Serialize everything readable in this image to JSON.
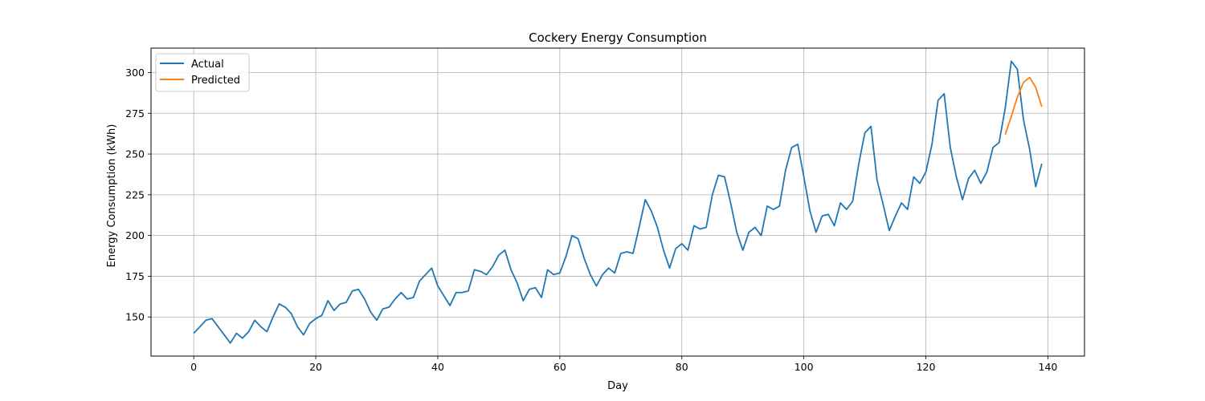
{
  "chart_data": {
    "type": "line",
    "title": "Cockery Energy Consumption",
    "xlabel": "Day",
    "ylabel": "Energy Consumption (kWh)",
    "xlim": [
      -7,
      146
    ],
    "ylim": [
      126,
      315
    ],
    "xticks": [
      0,
      20,
      40,
      60,
      80,
      100,
      120,
      140
    ],
    "yticks": [
      150,
      175,
      200,
      225,
      250,
      275,
      300
    ],
    "grid": true,
    "legend_position": "top-left",
    "series": [
      {
        "name": "Actual",
        "color": "#1f77b4",
        "x_start": 0,
        "values": [
          140,
          144,
          148,
          149,
          144,
          139,
          134,
          140,
          137,
          141,
          148,
          144,
          141,
          150,
          158,
          156,
          152,
          144,
          139,
          146,
          149,
          151,
          160,
          154,
          158,
          159,
          166,
          167,
          161,
          153,
          148,
          155,
          156,
          161,
          165,
          161,
          162,
          172,
          176,
          180,
          169,
          163,
          157,
          165,
          165,
          166,
          179,
          178,
          176,
          181,
          188,
          191,
          179,
          171,
          160,
          167,
          168,
          162,
          179,
          176,
          177,
          187,
          200,
          198,
          186,
          176,
          169,
          176,
          180,
          177,
          189,
          190,
          189,
          205,
          222,
          215,
          205,
          191,
          180,
          192,
          195,
          191,
          206,
          204,
          205,
          225,
          237,
          236,
          220,
          202,
          191,
          202,
          205,
          200,
          218,
          216,
          218,
          240,
          254,
          256,
          236,
          215,
          202,
          212,
          213,
          206,
          220,
          216,
          221,
          244,
          263,
          267,
          234,
          219,
          203,
          212,
          220,
          216,
          236,
          232,
          239,
          256,
          283,
          287,
          254,
          236,
          222,
          235,
          240,
          232,
          239,
          254,
          257,
          278,
          307,
          302,
          271,
          253,
          230,
          244
        ]
      },
      {
        "name": "Predicted",
        "color": "#ff7f0e",
        "x_start": 133,
        "values": [
          262,
          273,
          285,
          294,
          297,
          291,
          279
        ]
      }
    ]
  }
}
